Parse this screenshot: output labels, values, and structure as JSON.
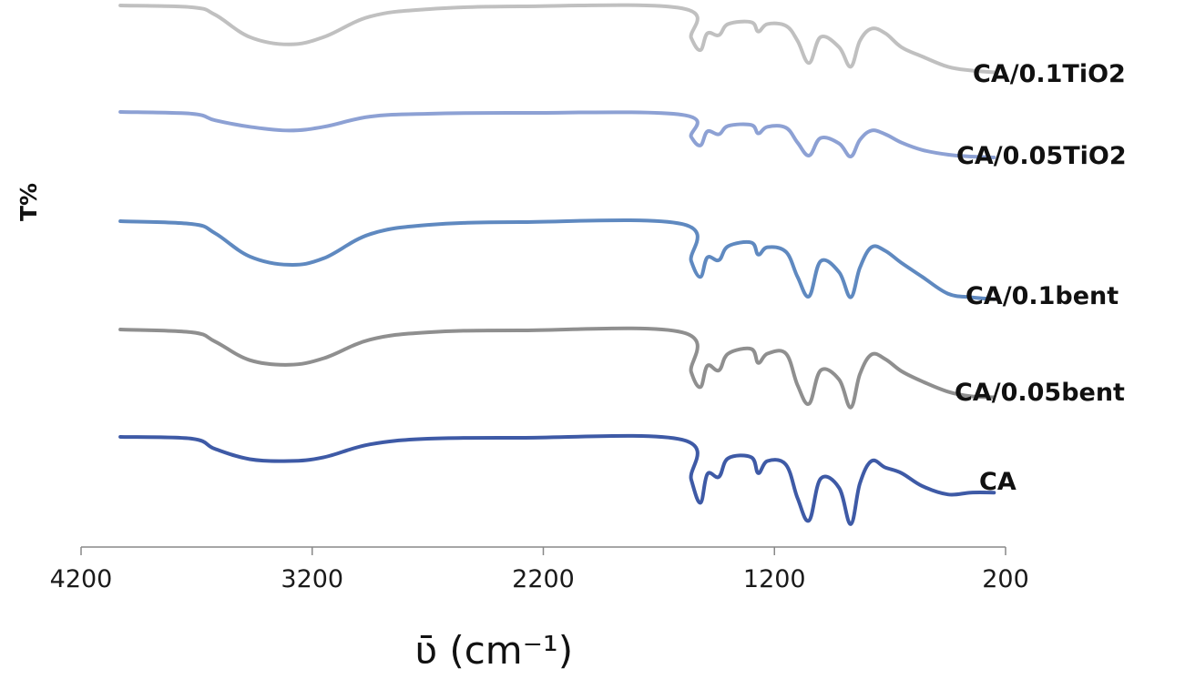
{
  "chart_data": {
    "type": "line",
    "title": "",
    "xlabel": "ʋ̄ (cm⁻¹)",
    "ylabel": "T%",
    "xlim": [
      4200,
      200
    ],
    "x_reversed": true,
    "x_ticks": [
      "4200",
      "3200",
      "2200",
      "1200",
      "200"
    ],
    "x_tick_values": [
      4200,
      3200,
      2200,
      1200,
      200
    ],
    "y_ticks_shown": false,
    "grid": false,
    "legend": "none",
    "series": [
      {
        "name": "CA/0.1TiO2",
        "color": "#c0c0c0",
        "points": [
          [
            4030,
            0.0
          ],
          [
            3720,
            0.2
          ],
          [
            3620,
            1.0
          ],
          [
            3470,
            3.4
          ],
          [
            3300,
            4.2
          ],
          [
            3150,
            3.4
          ],
          [
            2950,
            1.2
          ],
          [
            2700,
            0.4
          ],
          [
            2300,
            0.1
          ],
          [
            1600,
            0.3
          ],
          [
            1560,
            3.5
          ],
          [
            1520,
            4.8
          ],
          [
            1490,
            3.0
          ],
          [
            1440,
            3.2
          ],
          [
            1400,
            2.0
          ],
          [
            1300,
            1.8
          ],
          [
            1270,
            2.8
          ],
          [
            1230,
            2.0
          ],
          [
            1150,
            2.2
          ],
          [
            1100,
            3.8
          ],
          [
            1050,
            6.2
          ],
          [
            1000,
            3.4
          ],
          [
            920,
            4.5
          ],
          [
            870,
            6.6
          ],
          [
            830,
            3.8
          ],
          [
            780,
            2.5
          ],
          [
            720,
            3.0
          ],
          [
            650,
            4.5
          ],
          [
            560,
            5.5
          ],
          [
            450,
            6.6
          ],
          [
            350,
            7.0
          ],
          [
            250,
            7.2
          ]
        ]
      },
      {
        "name": "CA/0.05TiO2",
        "color": "#8da1d4",
        "points": [
          [
            4030,
            0.0
          ],
          [
            3720,
            0.2
          ],
          [
            3620,
            0.9
          ],
          [
            3470,
            1.6
          ],
          [
            3300,
            2.0
          ],
          [
            3150,
            1.6
          ],
          [
            2950,
            0.5
          ],
          [
            2700,
            0.2
          ],
          [
            2300,
            0.1
          ],
          [
            1600,
            0.3
          ],
          [
            1560,
            2.7
          ],
          [
            1520,
            3.6
          ],
          [
            1490,
            2.1
          ],
          [
            1440,
            2.4
          ],
          [
            1400,
            1.5
          ],
          [
            1300,
            1.4
          ],
          [
            1270,
            2.3
          ],
          [
            1230,
            1.6
          ],
          [
            1150,
            1.7
          ],
          [
            1100,
            3.3
          ],
          [
            1050,
            4.7
          ],
          [
            1000,
            2.8
          ],
          [
            920,
            3.4
          ],
          [
            870,
            4.8
          ],
          [
            830,
            3.0
          ],
          [
            780,
            2.0
          ],
          [
            720,
            2.4
          ],
          [
            650,
            3.3
          ],
          [
            560,
            4.1
          ],
          [
            450,
            4.6
          ],
          [
            350,
            4.8
          ],
          [
            250,
            4.9
          ]
        ]
      },
      {
        "name": "CA/0.1bent",
        "color": "#5f89c0",
        "points": [
          [
            4030,
            0.0
          ],
          [
            3720,
            0.3
          ],
          [
            3620,
            1.3
          ],
          [
            3470,
            3.8
          ],
          [
            3300,
            4.7
          ],
          [
            3150,
            4.0
          ],
          [
            2950,
            1.4
          ],
          [
            2700,
            0.4
          ],
          [
            2300,
            0.1
          ],
          [
            1600,
            0.3
          ],
          [
            1560,
            4.3
          ],
          [
            1520,
            6.0
          ],
          [
            1490,
            3.9
          ],
          [
            1440,
            4.2
          ],
          [
            1400,
            2.7
          ],
          [
            1300,
            2.3
          ],
          [
            1270,
            3.6
          ],
          [
            1230,
            2.8
          ],
          [
            1150,
            3.3
          ],
          [
            1100,
            6.0
          ],
          [
            1050,
            8.1
          ],
          [
            1000,
            4.3
          ],
          [
            920,
            5.5
          ],
          [
            870,
            8.2
          ],
          [
            830,
            5.0
          ],
          [
            780,
            2.8
          ],
          [
            720,
            3.2
          ],
          [
            650,
            4.5
          ],
          [
            560,
            6.0
          ],
          [
            450,
            7.8
          ],
          [
            350,
            8.2
          ],
          [
            250,
            8.4
          ]
        ]
      },
      {
        "name": "CA/0.05bent",
        "color": "#8f8f8f",
        "points": [
          [
            4030,
            0.0
          ],
          [
            3720,
            0.3
          ],
          [
            3620,
            1.3
          ],
          [
            3470,
            3.3
          ],
          [
            3300,
            3.8
          ],
          [
            3150,
            3.1
          ],
          [
            2950,
            1.1
          ],
          [
            2700,
            0.3
          ],
          [
            2300,
            0.1
          ],
          [
            1600,
            0.3
          ],
          [
            1560,
            4.6
          ],
          [
            1520,
            6.2
          ],
          [
            1490,
            3.9
          ],
          [
            1440,
            4.4
          ],
          [
            1400,
            2.6
          ],
          [
            1300,
            2.1
          ],
          [
            1270,
            3.6
          ],
          [
            1230,
            2.6
          ],
          [
            1150,
            2.6
          ],
          [
            1100,
            6.0
          ],
          [
            1050,
            8.0
          ],
          [
            1000,
            4.4
          ],
          [
            920,
            5.4
          ],
          [
            870,
            8.4
          ],
          [
            830,
            4.8
          ],
          [
            780,
            2.7
          ],
          [
            720,
            3.2
          ],
          [
            650,
            4.5
          ],
          [
            560,
            5.6
          ],
          [
            450,
            6.7
          ],
          [
            350,
            7.2
          ],
          [
            250,
            7.3
          ]
        ]
      },
      {
        "name": "CA",
        "color": "#3e5aa6",
        "points": [
          [
            4030,
            0.0
          ],
          [
            3720,
            0.2
          ],
          [
            3620,
            1.3
          ],
          [
            3470,
            2.4
          ],
          [
            3300,
            2.6
          ],
          [
            3150,
            2.2
          ],
          [
            2950,
            0.8
          ],
          [
            2700,
            0.2
          ],
          [
            2300,
            0.1
          ],
          [
            1600,
            0.3
          ],
          [
            1560,
            4.6
          ],
          [
            1520,
            7.1
          ],
          [
            1490,
            4.0
          ],
          [
            1440,
            4.3
          ],
          [
            1400,
            2.3
          ],
          [
            1300,
            2.2
          ],
          [
            1270,
            3.9
          ],
          [
            1230,
            2.6
          ],
          [
            1150,
            3.0
          ],
          [
            1100,
            6.6
          ],
          [
            1050,
            9.0
          ],
          [
            1000,
            4.5
          ],
          [
            920,
            5.5
          ],
          [
            870,
            9.4
          ],
          [
            830,
            5.0
          ],
          [
            780,
            2.6
          ],
          [
            720,
            3.3
          ],
          [
            650,
            3.9
          ],
          [
            560,
            5.3
          ],
          [
            450,
            6.2
          ],
          [
            350,
            6.0
          ],
          [
            250,
            6.0
          ]
        ]
      }
    ]
  }
}
